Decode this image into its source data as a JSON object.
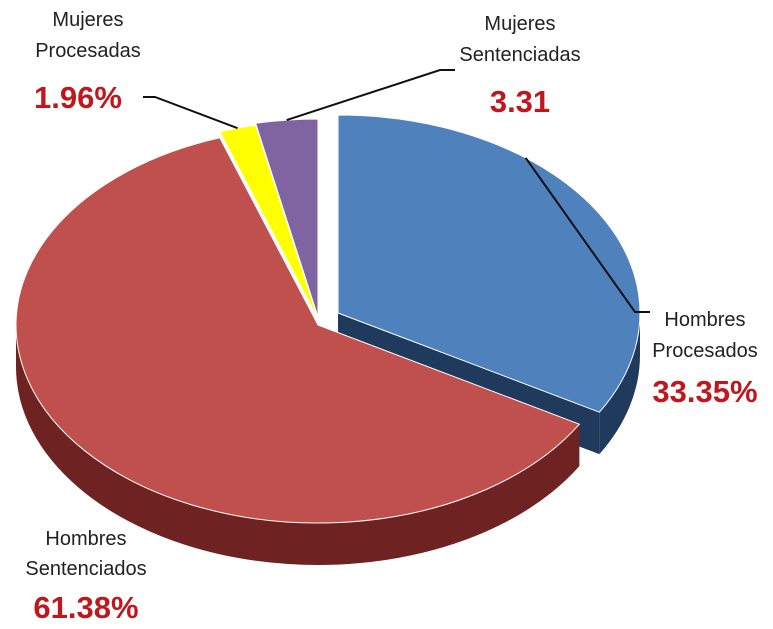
{
  "chart_data": {
    "type": "pie",
    "style": "3d-exploded",
    "slices": [
      {
        "label_lines": [
          "Hombres",
          "Procesados"
        ],
        "value": 33.35,
        "value_label": "33.35%",
        "color": "#4F81BD",
        "side": "#1F3A5C"
      },
      {
        "label_lines": [
          "Hombres",
          "Sentenciados"
        ],
        "value": 61.38,
        "value_label": "61.38%",
        "color": "#C0504D",
        "side": "#6E2322"
      },
      {
        "label_lines": [
          "Mujeres",
          "Procesadas"
        ],
        "value": 1.96,
        "value_label": "1.96%",
        "color": "#FFFF00",
        "side": "#6E6E00"
      },
      {
        "label_lines": [
          "Mujeres",
          "Sentenciadas"
        ],
        "value": 3.31,
        "value_label": "3.31",
        "color": "#8064A2",
        "side": "#3E2E55"
      }
    ],
    "value_label_color": "#C0171C"
  }
}
